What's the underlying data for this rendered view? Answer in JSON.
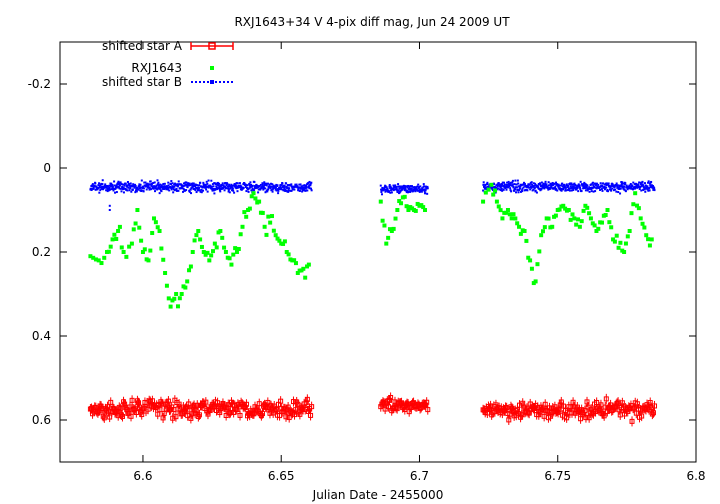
{
  "chart_data": {
    "type": "scatter",
    "title": "RXJ1643+34 V 4-pix diff mag, Jun 24 2009 UT",
    "xlabel": "Julian Date - 2455000",
    "ylabel": "",
    "xlim": [
      6.57,
      6.8
    ],
    "ylim": [
      0.7,
      -0.3
    ],
    "y_inverted": true,
    "grid": false,
    "legend_position": "top-left",
    "x_ticks": [
      6.6,
      6.65,
      6.7,
      6.75,
      6.8
    ],
    "x_tick_labels": [
      "6.6",
      "6.65",
      "6.7",
      "6.75",
      "6.8"
    ],
    "y_ticks": [
      -0.2,
      0,
      0.2,
      0.4,
      0.6
    ],
    "y_tick_labels": [
      "-0.2",
      "0",
      "0.2",
      "0.4",
      "0.6"
    ],
    "series": [
      {
        "name": "shifted star A",
        "color": "#ff0000",
        "marker": "open-square-with-errorbars",
        "segments": [
          {
            "x_start": 6.581,
            "x_end": 6.661,
            "y_mean": 0.575,
            "y_scatter": 0.02,
            "y_err": 0.012
          },
          {
            "x_start": 6.686,
            "x_end": 6.703,
            "y_mean": 0.565,
            "y_scatter": 0.015,
            "y_err": 0.012
          },
          {
            "x_start": 6.723,
            "x_end": 6.785,
            "y_mean": 0.575,
            "y_scatter": 0.02,
            "y_err": 0.012
          }
        ]
      },
      {
        "name": "RXJ1643",
        "color": "#00ff00",
        "marker": "filled-square",
        "points": [
          [
            6.581,
            0.21
          ],
          [
            6.584,
            0.22
          ],
          [
            6.587,
            0.2
          ],
          [
            6.589,
            0.17
          ],
          [
            6.591,
            0.15
          ],
          [
            6.593,
            0.2
          ],
          [
            6.596,
            0.18
          ],
          [
            6.598,
            0.1
          ],
          [
            6.6,
            0.2
          ],
          [
            6.602,
            0.22
          ],
          [
            6.604,
            0.12
          ],
          [
            6.606,
            0.15
          ],
          [
            6.608,
            0.25
          ],
          [
            6.61,
            0.33
          ],
          [
            6.612,
            0.3
          ],
          [
            6.614,
            0.3
          ],
          [
            6.616,
            0.27
          ],
          [
            6.618,
            0.2
          ],
          [
            6.62,
            0.15
          ],
          [
            6.622,
            0.2
          ],
          [
            6.624,
            0.22
          ],
          [
            6.626,
            0.18
          ],
          [
            6.628,
            0.15
          ],
          [
            6.63,
            0.2
          ],
          [
            6.632,
            0.23
          ],
          [
            6.634,
            0.2
          ],
          [
            6.636,
            0.14
          ],
          [
            6.638,
            0.1
          ],
          [
            6.64,
            0.06
          ],
          [
            6.642,
            0.08
          ],
          [
            6.644,
            0.14
          ],
          [
            6.646,
            0.13
          ],
          [
            6.648,
            0.16
          ],
          [
            6.65,
            0.18
          ],
          [
            6.652,
            0.2
          ],
          [
            6.654,
            0.22
          ],
          [
            6.656,
            0.25
          ],
          [
            6.658,
            0.24
          ],
          [
            6.66,
            0.23
          ],
          [
            6.686,
            0.08
          ],
          [
            6.688,
            0.18
          ],
          [
            6.69,
            0.15
          ],
          [
            6.692,
            0.1
          ],
          [
            6.694,
            0.07
          ],
          [
            6.696,
            0.1
          ],
          [
            6.698,
            0.1
          ],
          [
            6.7,
            0.09
          ],
          [
            6.702,
            0.1
          ],
          [
            6.723,
            0.08
          ],
          [
            6.726,
            0.04
          ],
          [
            6.728,
            0.08
          ],
          [
            6.73,
            0.12
          ],
          [
            6.732,
            0.1
          ],
          [
            6.734,
            0.11
          ],
          [
            6.736,
            0.14
          ],
          [
            6.738,
            0.15
          ],
          [
            6.74,
            0.22
          ],
          [
            6.742,
            0.27
          ],
          [
            6.744,
            0.16
          ],
          [
            6.746,
            0.12
          ],
          [
            6.748,
            0.14
          ],
          [
            6.75,
            0.1
          ],
          [
            6.752,
            0.09
          ],
          [
            6.754,
            0.1
          ],
          [
            6.756,
            0.12
          ],
          [
            6.758,
            0.14
          ],
          [
            6.76,
            0.09
          ],
          [
            6.762,
            0.12
          ],
          [
            6.764,
            0.15
          ],
          [
            6.766,
            0.13
          ],
          [
            6.768,
            0.1
          ],
          [
            6.77,
            0.17
          ],
          [
            6.772,
            0.19
          ],
          [
            6.774,
            0.2
          ],
          [
            6.776,
            0.15
          ],
          [
            6.778,
            0.06
          ],
          [
            6.78,
            0.12
          ],
          [
            6.782,
            0.16
          ],
          [
            6.784,
            0.17
          ]
        ]
      },
      {
        "name": "shifted star B",
        "color": "#0000ff",
        "marker": "dot",
        "segments": [
          {
            "x_start": 6.581,
            "x_end": 6.661,
            "y_mean": 0.045,
            "y_scatter": 0.012
          },
          {
            "x_start": 6.686,
            "x_end": 6.703,
            "y_mean": 0.05,
            "y_scatter": 0.01
          },
          {
            "x_start": 6.723,
            "x_end": 6.785,
            "y_mean": 0.045,
            "y_scatter": 0.012
          }
        ],
        "outliers": [
          [
            6.588,
            0.09
          ],
          [
            6.588,
            0.1
          ]
        ]
      }
    ]
  }
}
